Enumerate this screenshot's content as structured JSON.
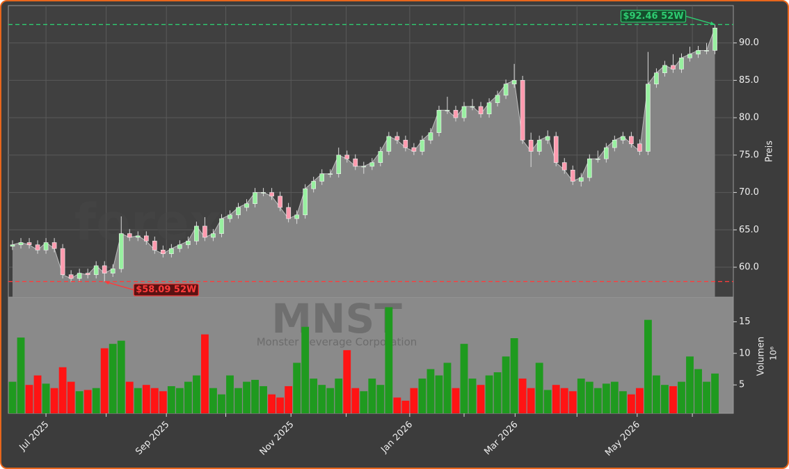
{
  "chart_data": {
    "type": "candlestick",
    "open": [
      62.8,
      63.0,
      63.3,
      63.0,
      62.3,
      63.3,
      62.5,
      59.0,
      58.5,
      59.2,
      59.0,
      60.2,
      59.2,
      59.8,
      64.5,
      64.0,
      64.2,
      63.5,
      62.3,
      61.8,
      62.5,
      63.0,
      63.5,
      65.5,
      64.0,
      64.5,
      66.5,
      67.0,
      68.0,
      68.5,
      70.0,
      70.0,
      69.5,
      68.0,
      66.5,
      67.0,
      70.5,
      71.5,
      72.5,
      72.5,
      75.0,
      74.5,
      73.5,
      73.5,
      74.0,
      75.5,
      77.5,
      77.0,
      76.0,
      75.5,
      77.0,
      78.0,
      81.0,
      81.0,
      80.0,
      81.5,
      81.5,
      80.5,
      82.0,
      83.0,
      84.5,
      85.0,
      77.0,
      75.5,
      77.0,
      77.5,
      74.0,
      73.0,
      71.5,
      72.0,
      74.5,
      74.5,
      76.0,
      77.0,
      77.5,
      76.5,
      75.5,
      84.5,
      86.0,
      87.0,
      86.5,
      88.0,
      88.5,
      89.0,
      89.0
    ],
    "high": [
      63.6,
      63.9,
      63.9,
      63.6,
      63.9,
      63.9,
      63.1,
      59.6,
      59.8,
      59.8,
      60.8,
      60.8,
      60.4,
      66.8,
      65.1,
      64.8,
      64.8,
      64.1,
      62.9,
      63.1,
      63.6,
      64.1,
      66.1,
      66.7,
      65.1,
      67.1,
      67.6,
      68.6,
      69.1,
      70.6,
      70.6,
      70.6,
      70.1,
      68.6,
      67.6,
      71.1,
      72.1,
      73.1,
      73.1,
      76.0,
      75.6,
      75.1,
      74.1,
      74.6,
      76.1,
      78.1,
      78.1,
      77.6,
      76.6,
      77.6,
      78.6,
      81.6,
      82.8,
      81.6,
      82.1,
      82.5,
      82.1,
      82.6,
      83.6,
      85.1,
      87.2,
      85.6,
      78.0,
      77.6,
      78.3,
      78.1,
      74.6,
      73.6,
      72.6,
      75.1,
      75.6,
      76.6,
      77.6,
      78.1,
      78.1,
      77.1,
      88.8,
      86.6,
      87.6,
      88.5,
      88.6,
      89.5,
      89.6,
      90.0,
      92.46
    ],
    "low": [
      62.3,
      62.5,
      62.5,
      61.8,
      61.8,
      62.0,
      58.5,
      58.0,
      58.0,
      58.5,
      58.5,
      58.09,
      58.7,
      59.3,
      63.5,
      63.5,
      63.0,
      61.8,
      61.3,
      61.3,
      62.0,
      62.5,
      63.0,
      63.5,
      63.5,
      64.0,
      66.0,
      66.5,
      67.5,
      68.0,
      69.5,
      69.0,
      67.5,
      66.0,
      65.8,
      66.5,
      70.0,
      71.0,
      72.0,
      72.0,
      74.0,
      73.0,
      72.5,
      73.0,
      73.5,
      75.0,
      76.5,
      75.5,
      75.0,
      75.0,
      76.5,
      77.5,
      80.5,
      79.5,
      79.5,
      81.0,
      80.0,
      80.0,
      81.5,
      82.5,
      84.0,
      76.5,
      73.4,
      75.0,
      76.5,
      73.5,
      72.5,
      71.0,
      70.8,
      71.5,
      74.0,
      74.0,
      75.5,
      76.5,
      76.0,
      75.0,
      75.0,
      84.0,
      85.5,
      86.0,
      86.0,
      87.5,
      88.0,
      88.5,
      88.5
    ],
    "close": [
      63.0,
      63.3,
      63.0,
      62.3,
      63.3,
      62.5,
      59.0,
      58.5,
      59.2,
      59.0,
      60.2,
      59.2,
      59.8,
      64.5,
      64.0,
      64.2,
      63.5,
      62.3,
      61.8,
      62.5,
      63.0,
      63.5,
      65.5,
      64.0,
      64.5,
      66.5,
      67.0,
      68.0,
      68.5,
      70.0,
      70.0,
      69.5,
      68.0,
      66.5,
      67.0,
      70.5,
      71.5,
      72.5,
      72.5,
      75.0,
      74.5,
      73.5,
      73.5,
      74.0,
      75.5,
      77.5,
      77.0,
      76.0,
      75.5,
      77.0,
      78.0,
      81.0,
      81.0,
      80.0,
      81.5,
      81.5,
      80.5,
      82.0,
      83.0,
      84.5,
      85.0,
      77.0,
      75.5,
      77.0,
      77.5,
      74.0,
      73.0,
      71.5,
      72.0,
      74.5,
      74.5,
      76.0,
      77.0,
      77.5,
      76.5,
      75.5,
      84.5,
      86.0,
      87.0,
      86.5,
      88.0,
      88.5,
      89.0,
      89.0,
      92.0
    ],
    "xlim": [
      -0.5,
      86.2
    ],
    "xticks": [
      {
        "value": 4.0,
        "label": "Jul 2025"
      },
      {
        "value": 18.4,
        "label": "Sep 2025"
      },
      {
        "value": 33.3,
        "label": "Nov 2025"
      },
      {
        "value": 47.5,
        "label": "Jan 2026"
      },
      {
        "value": 60.1,
        "label": "Mar 2026"
      },
      {
        "value": 74.7,
        "label": "May 2026"
      }
    ],
    "xminorticks": [
      11.2,
      25.5,
      39.9,
      54.0,
      67.5,
      81.3
    ],
    "ylim": [
      56,
      95
    ],
    "yticks": [
      {
        "value": 60,
        "label": "60.0"
      },
      {
        "value": 65,
        "label": "65.0"
      },
      {
        "value": 70,
        "label": "70.0"
      },
      {
        "value": 75,
        "label": "75.0"
      },
      {
        "value": 80,
        "label": "80.0"
      },
      {
        "value": 85,
        "label": "85.0"
      },
      {
        "value": 90,
        "label": "90.0"
      }
    ],
    "ylabel": "Preis",
    "grid": true,
    "up_color": "#98f0a0",
    "down_color": "#ff9aae",
    "annotations": [
      {
        "value": 92.46,
        "label": "$92.46 52W",
        "color": "#2ecc71",
        "of": "high"
      },
      {
        "value": 58.09,
        "label": "$58.09 52W",
        "color": "#ff3b3b",
        "of": "low"
      }
    ],
    "watermark": "forexsignale.trade",
    "symbol": "MNST",
    "company": "Monster Beverage Corporation",
    "volume": {
      "values": [
        5.5,
        12.5,
        5.0,
        6.5,
        5.2,
        4.5,
        7.8,
        5.5,
        4.0,
        4.2,
        4.5,
        10.8,
        11.5,
        12.0,
        5.5,
        4.5,
        5.0,
        4.5,
        4.0,
        4.8,
        4.5,
        5.5,
        6.5,
        13.0,
        4.5,
        3.5,
        6.5,
        4.5,
        5.5,
        5.8,
        4.8,
        3.5,
        3.0,
        4.8,
        8.5,
        14.2,
        6.0,
        5.0,
        4.5,
        6.0,
        10.5,
        4.5,
        4.0,
        6.0,
        5.0,
        17.3,
        3.0,
        2.5,
        4.5,
        6.0,
        7.5,
        6.5,
        8.5,
        4.5,
        11.5,
        6.0,
        5.0,
        6.5,
        7.0,
        9.5,
        12.4,
        6.0,
        4.5,
        8.5,
        4.2,
        5.0,
        4.5,
        4.0,
        6.0,
        5.5,
        4.5,
        5.2,
        5.5,
        4.0,
        3.5,
        4.5,
        15.3,
        6.5,
        5.0,
        4.8,
        5.5,
        9.5,
        7.5,
        5.5,
        6.8
      ],
      "ylim": [
        0.5,
        18.9
      ],
      "yticks": [
        5,
        10,
        15
      ],
      "ylabel": "Volumen",
      "offset_label": "10⁶",
      "up_color": "#1f9a1f",
      "down_color": "#ff1414"
    }
  }
}
